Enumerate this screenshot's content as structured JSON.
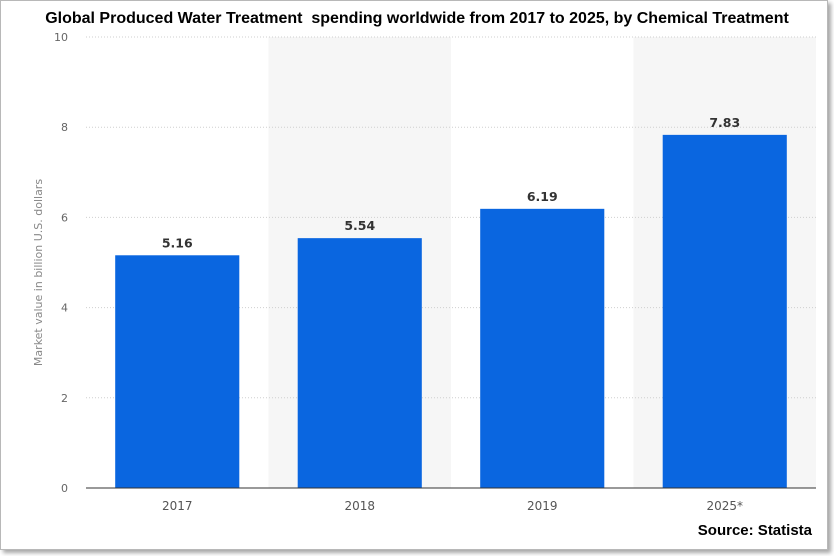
{
  "chart_data": {
    "type": "bar",
    "title": "Global Produced Water Treatment  spending worldwide from 2017 to 2025, by Chemical Treatment",
    "xlabel": "",
    "ylabel": "Market value in billion U.S. dollars",
    "categories": [
      "2017",
      "2018",
      "2019",
      "2025*"
    ],
    "values": [
      5.16,
      5.54,
      6.19,
      7.83
    ],
    "value_labels": [
      "5.16",
      "5.54",
      "6.19",
      "7.83"
    ],
    "ylim": [
      0,
      10
    ],
    "yticks": [
      "0",
      "2",
      "4",
      "6",
      "8",
      "10"
    ],
    "grid": true,
    "bar_color": "#0a66e0",
    "source": "Source: Statista"
  }
}
